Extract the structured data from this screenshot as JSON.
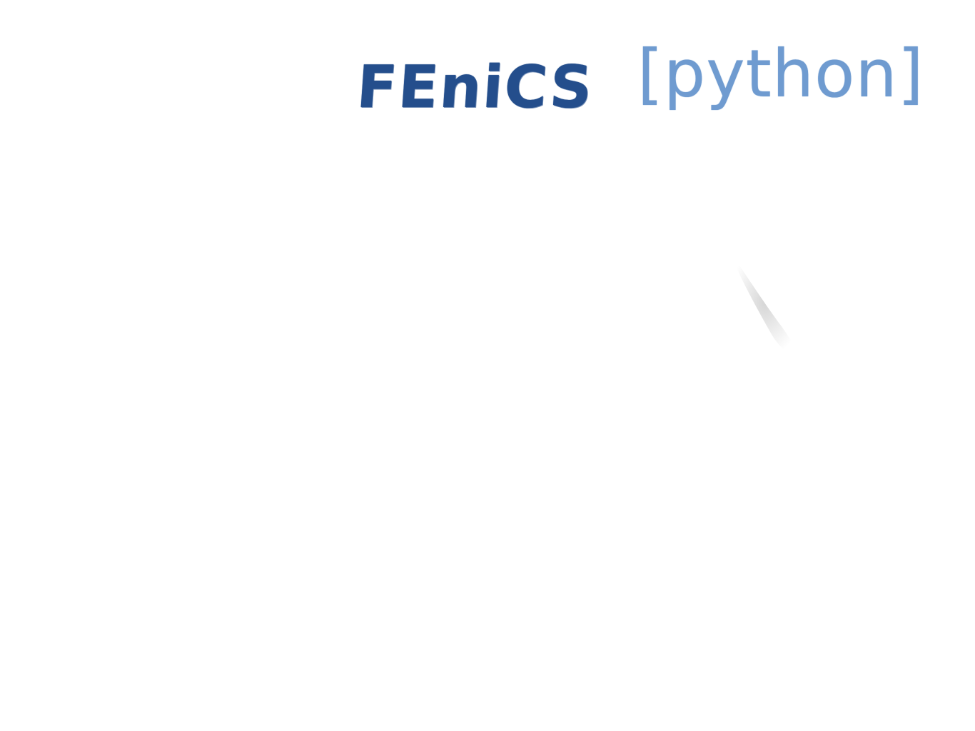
{
  "title_word": "FEniCS",
  "language_tag": "[python]",
  "colors": {
    "title": "#244e8c",
    "language_tag": "#6f9bd0",
    "smudge": "#b4b4b4",
    "background": "#ffffff"
  }
}
